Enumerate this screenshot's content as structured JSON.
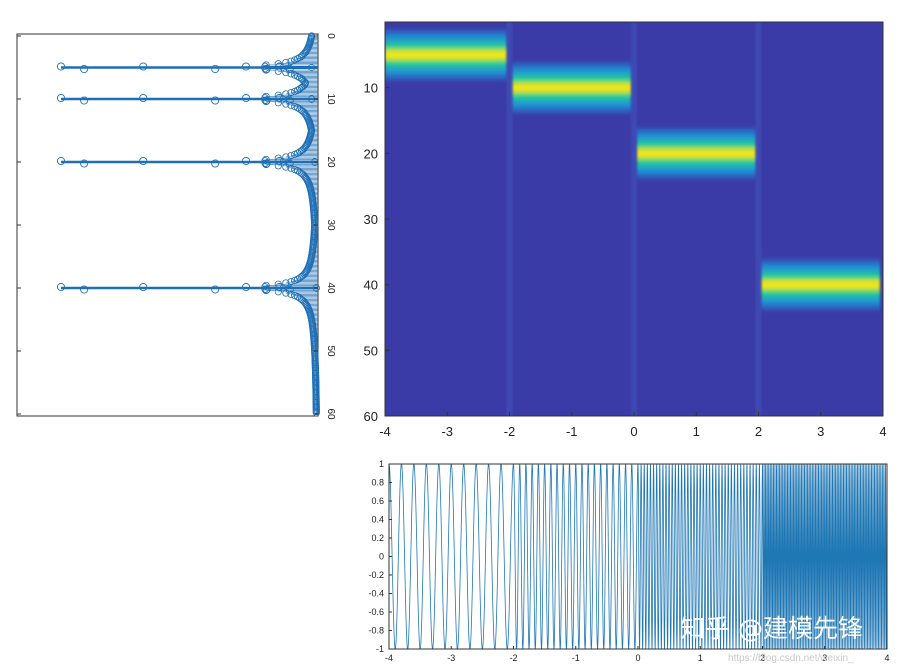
{
  "colors": {
    "stem": "#1f6fb5",
    "heatmap_background": "#3b3ba8",
    "heatmap_core": "#ffe600",
    "sine_line": "#1f77b4",
    "axis": "#333333"
  },
  "chart_data": [
    {
      "type": "stem",
      "orientation": "rotated-90",
      "yaxis_ticks": [
        "0",
        "10",
        "20",
        "30",
        "40",
        "50",
        "60"
      ],
      "ylim": [
        0,
        60
      ],
      "peaks": [
        {
          "position": 5,
          "magnitude": 1.0
        },
        {
          "position": 10,
          "magnitude": 1.0
        },
        {
          "position": 20,
          "magnitude": 1.0
        },
        {
          "position": 40,
          "magnitude": 1.0
        }
      ],
      "xaxis_ticks_shown": false,
      "grid": false
    },
    {
      "type": "heatmap",
      "xlim": [
        -4,
        4
      ],
      "ylim": [
        0,
        60
      ],
      "x_ticks": [
        "-4",
        "-3",
        "-2",
        "-1",
        "0",
        "1",
        "2",
        "3",
        "4"
      ],
      "y_ticks": [
        "10",
        "20",
        "30",
        "40",
        "50",
        "60"
      ],
      "ridge_segments": [
        {
          "t_start": -4,
          "t_end": -2,
          "frequency": 5
        },
        {
          "t_start": -2,
          "t_end": 0,
          "frequency": 10
        },
        {
          "t_start": 0,
          "t_end": 2,
          "frequency": 20
        },
        {
          "t_start": 2,
          "t_end": 4,
          "frequency": 40
        }
      ],
      "grid": false
    },
    {
      "type": "line",
      "xlim": [
        -4,
        4
      ],
      "ylim": [
        -1,
        1
      ],
      "x_ticks": [
        "-4",
        "-3",
        "-2",
        "-1",
        "0",
        "1",
        "2",
        "3",
        "4"
      ],
      "y_ticks": [
        "1",
        "0.8",
        "0.6",
        "0.4",
        "0.2",
        "0",
        "-0.2",
        "-0.4",
        "-0.6",
        "-0.8",
        "-1"
      ],
      "segments": [
        {
          "t_start": -4,
          "t_end": -2,
          "frequency": 5
        },
        {
          "t_start": -2,
          "t_end": 0,
          "frequency": 10
        },
        {
          "t_start": 0,
          "t_end": 2,
          "frequency": 20
        },
        {
          "t_start": 2,
          "t_end": 4,
          "frequency": 40
        }
      ],
      "grid": false
    }
  ],
  "watermark": {
    "text": "知乎 @建模先锋",
    "url": "https://blog.csdn.net/weixin_"
  }
}
